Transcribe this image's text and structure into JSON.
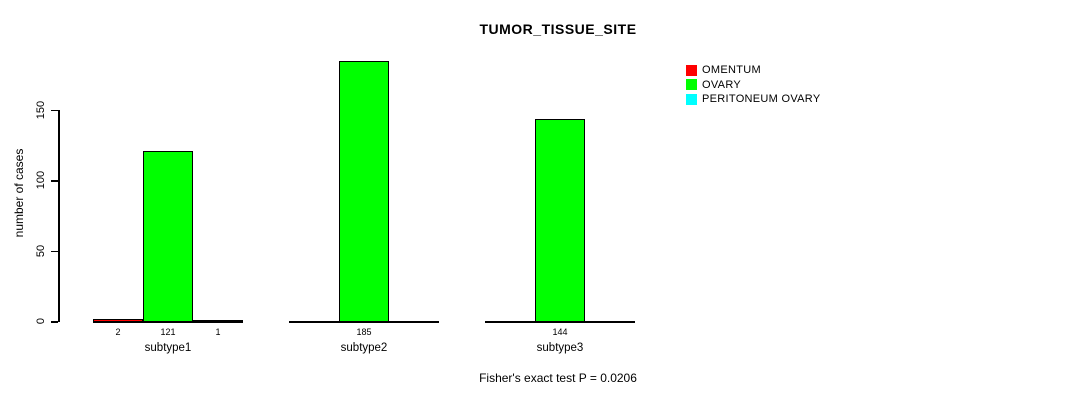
{
  "title": "TUMOR_TISSUE_SITE",
  "ylabel": "number of cases",
  "footer": "Fisher's exact test P = 0.0206",
  "legend": {
    "items": [
      {
        "label": "OMENTUM",
        "color": "#ff0000"
      },
      {
        "label": "OVARY",
        "color": "#00ff00"
      },
      {
        "label": "PERITONEUM OVARY",
        "color": "#00ffff"
      }
    ]
  },
  "chart_data": {
    "type": "bar",
    "title": "TUMOR_TISSUE_SITE",
    "xlabel": "",
    "ylabel": "number of cases",
    "categories": [
      "subtype1",
      "subtype2",
      "subtype3"
    ],
    "series": [
      {
        "name": "OMENTUM",
        "color": "#ff0000",
        "values": [
          2,
          0,
          0
        ]
      },
      {
        "name": "OVARY",
        "color": "#00ff00",
        "values": [
          121,
          185,
          144
        ]
      },
      {
        "name": "PERITONEUM OVARY",
        "color": "#00ffff",
        "values": [
          1,
          0,
          0
        ]
      }
    ],
    "bar_value_labels": [
      [
        "2",
        "121",
        "1"
      ],
      [
        "",
        "185",
        ""
      ],
      [
        "",
        "144",
        ""
      ]
    ],
    "ylim": [
      0,
      185
    ],
    "yticks": [
      0,
      50,
      100,
      150
    ],
    "grid": false,
    "legend_position": "right",
    "annotation": "Fisher's exact test P = 0.0206"
  }
}
